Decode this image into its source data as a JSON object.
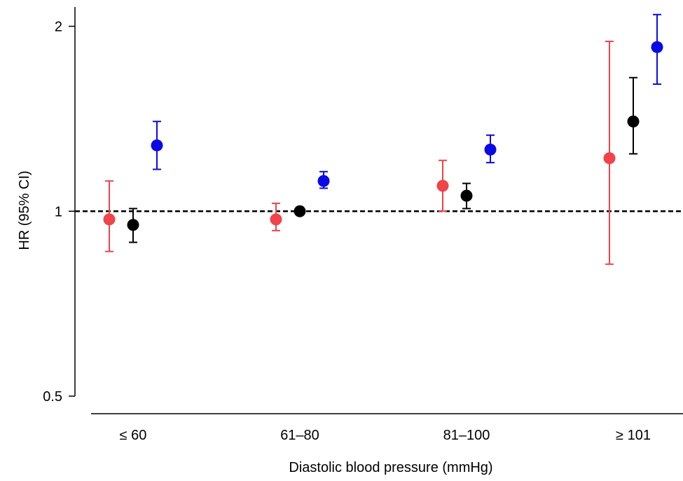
{
  "chart_data": {
    "type": "scatter",
    "title": "",
    "xlabel": "Diastolic blood pressure (mmHg)",
    "ylabel": "HR (95% CI)",
    "y_scale": "log",
    "ylim": [
      0.5,
      2.15
    ],
    "yticks": [
      0.5,
      1,
      2
    ],
    "ytick_labels": [
      "0.5",
      "1",
      "2"
    ],
    "categories": [
      "≤ 60",
      "61–80",
      "81–100",
      "≥ 101"
    ],
    "reference_line": {
      "value": 1,
      "style": "dashed"
    },
    "grid": false,
    "legend": "none",
    "series": [
      {
        "color": "#f0434a",
        "values": [
          0.97,
          0.97,
          1.1,
          1.22
        ],
        "lower": [
          0.86,
          0.93,
          1.0,
          0.82
        ],
        "upper": [
          1.12,
          1.03,
          1.21,
          1.89
        ]
      },
      {
        "color": "#000000",
        "values": [
          0.95,
          1.0,
          1.06,
          1.4
        ],
        "lower": [
          0.89,
          1.0,
          1.01,
          1.24
        ],
        "upper": [
          1.01,
          1.0,
          1.11,
          1.65
        ]
      },
      {
        "color": "#0a0ae6",
        "values": [
          1.28,
          1.12,
          1.26,
          1.85
        ],
        "lower": [
          1.17,
          1.09,
          1.2,
          1.61
        ],
        "upper": [
          1.4,
          1.16,
          1.33,
          2.09
        ]
      }
    ]
  }
}
